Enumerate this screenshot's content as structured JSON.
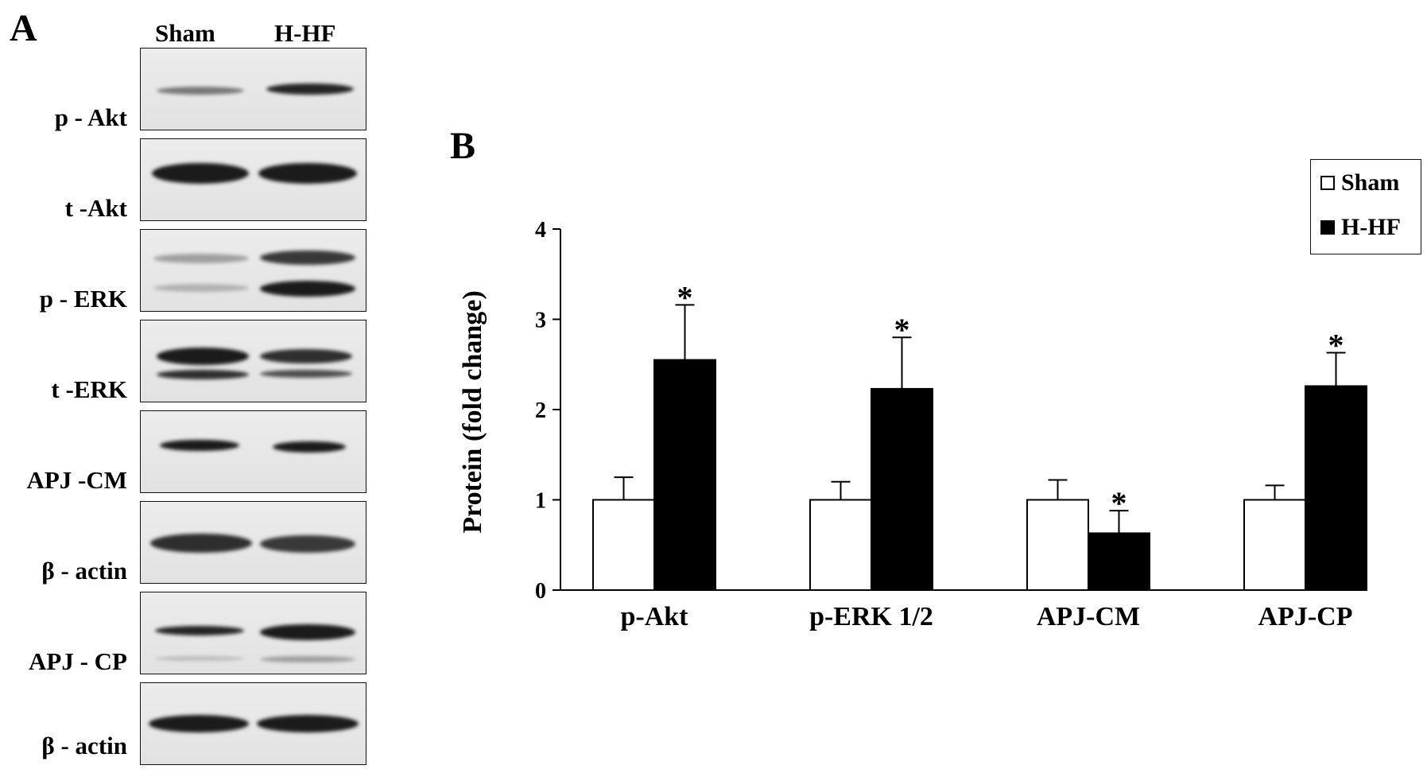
{
  "panel_a": {
    "letter": "A",
    "lanes": [
      "Sham",
      "H-HF"
    ],
    "blots": [
      {
        "label": "p - Akt"
      },
      {
        "label": "t -Akt"
      },
      {
        "label": "p - ERK"
      },
      {
        "label": "t -ERK"
      },
      {
        "label": "APJ -CM"
      },
      {
        "label": "β - actin"
      },
      {
        "label": "APJ - CP"
      },
      {
        "label": "β - actin"
      }
    ]
  },
  "panel_b": {
    "letter": "B"
  },
  "chart_data": {
    "type": "bar",
    "categories": [
      "p-Akt",
      "p-ERK 1/2",
      "APJ-CM",
      "APJ-CP"
    ],
    "series": [
      {
        "name": "Sham",
        "values": [
          1.0,
          1.0,
          1.0,
          1.0
        ],
        "errors": [
          0.25,
          0.2,
          0.22,
          0.16
        ],
        "color": "#ffffff"
      },
      {
        "name": "H-HF",
        "values": [
          2.55,
          2.23,
          0.63,
          2.26
        ],
        "errors": [
          0.61,
          0.57,
          0.25,
          0.37
        ],
        "color": "#000000"
      }
    ],
    "significance_marker": "*",
    "significant": [
      false,
      false,
      false,
      false,
      true,
      true,
      true,
      true
    ],
    "ylabel": "Protein (fold change)",
    "xlabel": "",
    "ylim": [
      0,
      4
    ],
    "yticks": [
      "0",
      "1",
      "2",
      "3",
      "4"
    ],
    "legend_position": "top-right",
    "grid": false
  }
}
